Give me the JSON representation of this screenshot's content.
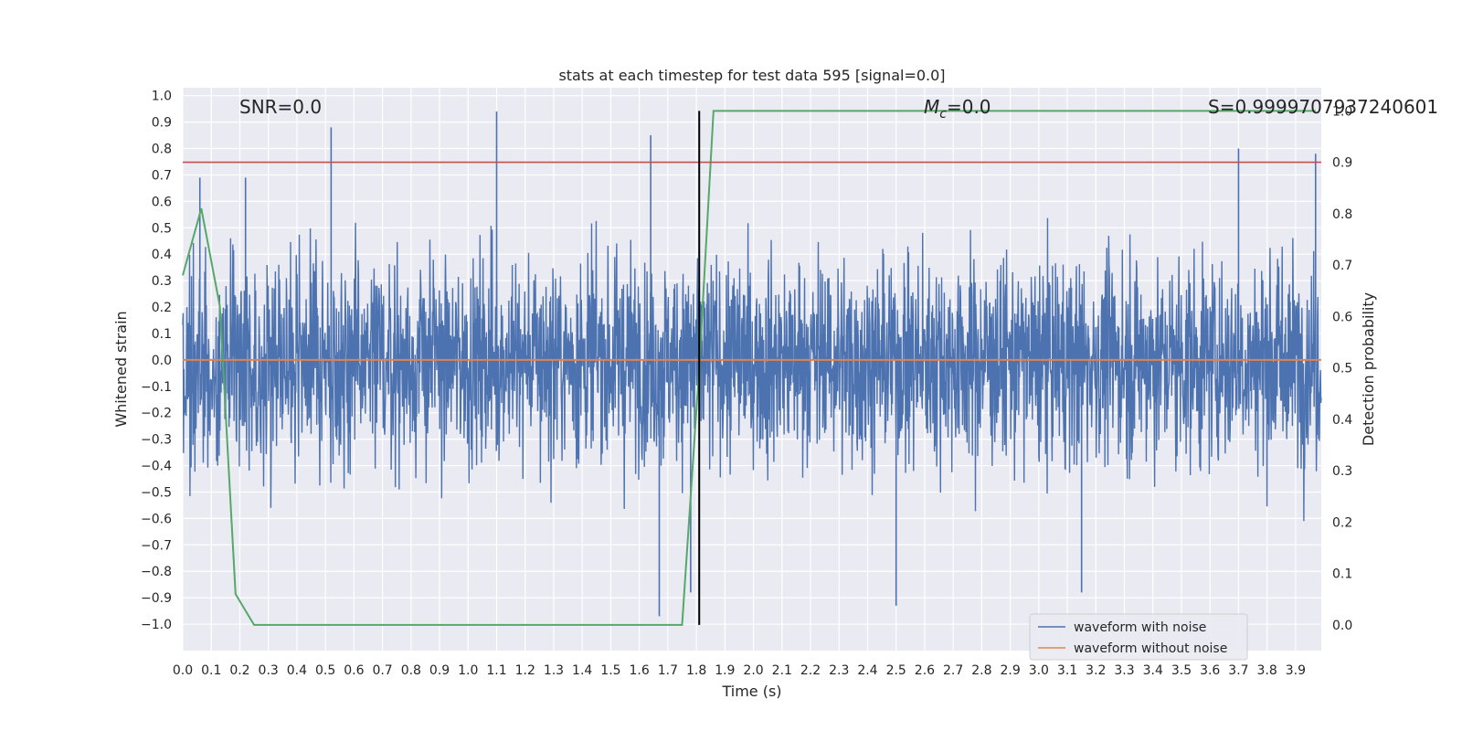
{
  "chart_data": {
    "type": "line",
    "title": "stats at each timestep for test data 595 [signal=0.0]",
    "xlabel": "Time (s)",
    "ylabel": "Whitened strain",
    "y2label": "Detection probability",
    "xlim": [
      0.0,
      3.99
    ],
    "ylim": [
      -1.1,
      1.03
    ],
    "y2lim": [
      -0.05,
      1.045
    ],
    "x_ticks": [
      0.0,
      0.1,
      0.2,
      0.3,
      0.4,
      0.5,
      0.6,
      0.7,
      0.8,
      0.9,
      1.0,
      1.1,
      1.2,
      1.3,
      1.4,
      1.5,
      1.6,
      1.7,
      1.8,
      1.9,
      2.0,
      2.1,
      2.2,
      2.3,
      2.4,
      2.5,
      2.6,
      2.7,
      2.8,
      2.9,
      3.0,
      3.1,
      3.2,
      3.3,
      3.4,
      3.5,
      3.6,
      3.7,
      3.8,
      3.9
    ],
    "x_tick_labels": [
      "0.0",
      "0.1",
      "0.2",
      "0.3",
      "0.4",
      "0.5",
      "0.6",
      "0.7",
      "0.8",
      "0.9",
      "1.0",
      "1.1",
      "1.2",
      "1.3",
      "1.4",
      "1.5",
      "1.6",
      "1.7",
      "1.8",
      "1.9",
      "2.0",
      "2.1",
      "2.2",
      "2.3",
      "2.4",
      "2.5",
      "2.6",
      "2.7",
      "2.8",
      "2.9",
      "3.0",
      "3.1",
      "3.2",
      "3.3",
      "3.4",
      "3.5",
      "3.6",
      "3.7",
      "3.8",
      "3.9"
    ],
    "y_ticks": [
      1.0,
      0.9,
      0.8,
      0.7,
      0.6,
      0.5,
      0.4,
      0.3,
      0.2,
      0.1,
      0.0,
      -0.1,
      -0.2,
      -0.3,
      -0.4,
      -0.5,
      -0.6,
      -0.7,
      -0.8,
      -0.9,
      -1.0
    ],
    "y_tick_labels": [
      "1.0",
      "0.9",
      "0.8",
      "0.7",
      "0.6",
      "0.5",
      "0.4",
      "0.3",
      "0.2",
      "0.1",
      "0.0",
      "−0.1",
      "−0.2",
      "−0.3",
      "−0.4",
      "−0.5",
      "−0.6",
      "−0.7",
      "−0.8",
      "−0.9",
      "−1.0"
    ],
    "y2_ticks": [
      1.0,
      0.9,
      0.8,
      0.7,
      0.6,
      0.5,
      0.4,
      0.3,
      0.2,
      0.1,
      0.0
    ],
    "y2_tick_labels": [
      "1.0",
      "0.9",
      "0.8",
      "0.7",
      "0.6",
      "0.5",
      "0.4",
      "0.3",
      "0.2",
      "0.1",
      "0.0"
    ],
    "grid": true,
    "legend_placement": "lower-right",
    "annotations": {
      "snr": "SNR=0.0",
      "mc": "M",
      "mc_sub": "c",
      "mc_value": "=0.0",
      "s": "S=0.9999707937240601"
    },
    "series": [
      {
        "name": "waveform with noise",
        "color": "#4c72b0",
        "description_level": "noise, roughly within [-1.0, 0.94]",
        "spikes_x": [
          0.06,
          0.22,
          0.52,
          1.1,
          1.64,
          1.67,
          1.78,
          2.5,
          3.15,
          3.7,
          3.97
        ],
        "spikes_y": [
          0.69,
          0.69,
          0.88,
          0.94,
          0.85,
          -0.97,
          -0.88,
          -0.93,
          -0.88,
          0.8,
          0.78
        ]
      },
      {
        "name": "waveform without noise",
        "color": "#dd8452",
        "x": [
          0.0,
          3.99
        ],
        "y": [
          0.0,
          0.0
        ]
      },
      {
        "name": "",
        "color": "#55a868",
        "axis": "secondary",
        "x": [
          0.0,
          0.065,
          0.13,
          0.185,
          0.25,
          0.3,
          0.5,
          1.0,
          1.5,
          1.75,
          1.81,
          1.86,
          1.9,
          2.5,
          3.0,
          3.5,
          3.97
        ],
        "y": [
          0.68,
          0.81,
          0.62,
          0.06,
          0.0,
          0.0,
          0.0,
          0.0,
          0.0,
          0.0,
          0.5,
          1.0,
          1.0,
          1.0,
          1.0,
          1.0,
          1.0
        ]
      }
    ],
    "threshold": {
      "color": "#c44e52",
      "y2": 0.9
    },
    "marker_line": {
      "color": "#000000",
      "x": 1.81
    }
  }
}
